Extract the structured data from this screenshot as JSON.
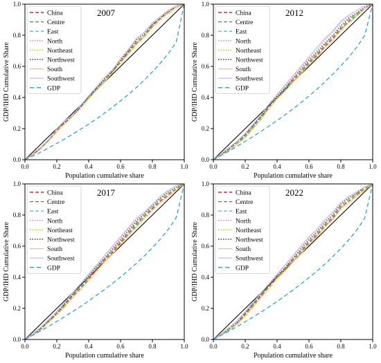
{
  "figure": {
    "xlabel": "Population cumulative share",
    "ylabel": "GDP/IHD Cumulative Share",
    "ticks": [
      "0.0",
      "0.2",
      "0.4",
      "0.6",
      "0.8",
      "1.0"
    ]
  },
  "legend_entries": [
    {
      "name": "China",
      "color": "#d62728",
      "dash": "5,3",
      "width": 1.3
    },
    {
      "name": "Centre",
      "color": "#2ca02c",
      "dash": "5,3",
      "width": 1.0
    },
    {
      "name": "East",
      "color": "#17becf",
      "dash": "5,3",
      "width": 1.0
    },
    {
      "name": "North",
      "color": "#e377c2",
      "dash": "1.5,2",
      "width": 1.2
    },
    {
      "name": "Northeast",
      "color": "#bcbd22",
      "dash": "1.5,2",
      "width": 1.2
    },
    {
      "name": "Northwest",
      "color": "#333333",
      "dash": "1.5,2",
      "width": 1.2
    },
    {
      "name": "South",
      "color": "#ffbb78",
      "dash": "",
      "width": 1.0
    },
    {
      "name": "Southwest",
      "color": "#c5b0d5",
      "dash": "",
      "width": 1.0
    },
    {
      "name": "GDP",
      "color": "#1f9bd8",
      "dash": "6,4",
      "width": 1.2
    }
  ],
  "chart_data": [
    {
      "type": "line",
      "title": "2007",
      "xlim": [
        0,
        1
      ],
      "ylim": [
        0,
        1
      ],
      "x": [
        0,
        0.05,
        0.1,
        0.15,
        0.2,
        0.25,
        0.3,
        0.35,
        0.4,
        0.45,
        0.5,
        0.55,
        0.6,
        0.65,
        0.7,
        0.75,
        0.8,
        0.85,
        0.9,
        0.95,
        1.0
      ],
      "series": [
        {
          "name": "China",
          "values": [
            0,
            0.03,
            0.08,
            0.13,
            0.19,
            0.24,
            0.28,
            0.34,
            0.4,
            0.46,
            0.51,
            0.57,
            0.63,
            0.69,
            0.75,
            0.79,
            0.86,
            0.91,
            0.95,
            0.98,
            1.0
          ]
        },
        {
          "name": "Centre",
          "values": [
            0,
            0.04,
            0.08,
            0.12,
            0.2,
            0.24,
            0.28,
            0.34,
            0.41,
            0.46,
            0.51,
            0.57,
            0.63,
            0.7,
            0.76,
            0.8,
            0.87,
            0.91,
            0.95,
            0.98,
            1.0
          ]
        },
        {
          "name": "East",
          "values": [
            0,
            0.03,
            0.07,
            0.12,
            0.18,
            0.23,
            0.28,
            0.34,
            0.4,
            0.45,
            0.51,
            0.56,
            0.62,
            0.68,
            0.74,
            0.79,
            0.85,
            0.9,
            0.94,
            0.98,
            1.0
          ]
        },
        {
          "name": "North",
          "values": [
            0,
            0.04,
            0.08,
            0.13,
            0.2,
            0.25,
            0.29,
            0.35,
            0.41,
            0.47,
            0.52,
            0.58,
            0.64,
            0.71,
            0.78,
            0.82,
            0.88,
            0.92,
            0.96,
            0.99,
            1.0
          ]
        },
        {
          "name": "Northeast",
          "values": [
            0,
            0.03,
            0.07,
            0.12,
            0.19,
            0.24,
            0.28,
            0.34,
            0.4,
            0.46,
            0.51,
            0.57,
            0.63,
            0.69,
            0.75,
            0.8,
            0.86,
            0.91,
            0.95,
            0.98,
            1.0
          ]
        },
        {
          "name": "Northwest",
          "values": [
            0,
            0.03,
            0.08,
            0.13,
            0.2,
            0.24,
            0.28,
            0.34,
            0.41,
            0.46,
            0.52,
            0.57,
            0.64,
            0.7,
            0.77,
            0.81,
            0.87,
            0.91,
            0.96,
            0.98,
            1.0
          ]
        },
        {
          "name": "South",
          "values": [
            0,
            0.03,
            0.07,
            0.12,
            0.18,
            0.23,
            0.28,
            0.33,
            0.39,
            0.45,
            0.5,
            0.56,
            0.62,
            0.68,
            0.74,
            0.79,
            0.85,
            0.9,
            0.94,
            0.98,
            1.0
          ]
        },
        {
          "name": "Southwest",
          "values": [
            0,
            0.04,
            0.08,
            0.13,
            0.2,
            0.25,
            0.29,
            0.35,
            0.41,
            0.47,
            0.53,
            0.58,
            0.65,
            0.71,
            0.78,
            0.82,
            0.88,
            0.92,
            0.96,
            0.99,
            1.0
          ]
        },
        {
          "name": "GDP",
          "values": [
            0,
            0.025,
            0.05,
            0.077,
            0.105,
            0.134,
            0.165,
            0.196,
            0.229,
            0.263,
            0.3,
            0.338,
            0.378,
            0.42,
            0.465,
            0.513,
            0.565,
            0.621,
            0.683,
            0.757,
            1.0
          ]
        }
      ]
    },
    {
      "type": "line",
      "title": "2012",
      "xlim": [
        0,
        1
      ],
      "ylim": [
        0,
        1
      ],
      "x": [
        0,
        0.05,
        0.1,
        0.15,
        0.2,
        0.25,
        0.3,
        0.35,
        0.4,
        0.45,
        0.5,
        0.55,
        0.6,
        0.65,
        0.7,
        0.75,
        0.8,
        0.85,
        0.9,
        0.95,
        1.0
      ],
      "series": [
        {
          "name": "China",
          "values": [
            0,
            0.03,
            0.07,
            0.11,
            0.15,
            0.21,
            0.27,
            0.34,
            0.4,
            0.45,
            0.51,
            0.56,
            0.62,
            0.67,
            0.73,
            0.78,
            0.84,
            0.89,
            0.93,
            0.97,
            1.0
          ]
        },
        {
          "name": "Centre",
          "values": [
            0,
            0.03,
            0.07,
            0.11,
            0.16,
            0.22,
            0.28,
            0.34,
            0.4,
            0.46,
            0.52,
            0.57,
            0.63,
            0.68,
            0.74,
            0.79,
            0.85,
            0.9,
            0.94,
            0.97,
            1.0
          ]
        },
        {
          "name": "East",
          "values": [
            0,
            0.03,
            0.06,
            0.1,
            0.15,
            0.21,
            0.27,
            0.33,
            0.39,
            0.45,
            0.5,
            0.55,
            0.61,
            0.66,
            0.72,
            0.77,
            0.83,
            0.88,
            0.93,
            0.97,
            1.0
          ]
        },
        {
          "name": "North",
          "values": [
            0,
            0.04,
            0.08,
            0.12,
            0.17,
            0.23,
            0.29,
            0.35,
            0.41,
            0.47,
            0.53,
            0.59,
            0.65,
            0.7,
            0.77,
            0.82,
            0.88,
            0.92,
            0.95,
            0.98,
            1.0
          ]
        },
        {
          "name": "Northeast",
          "values": [
            0,
            0.03,
            0.07,
            0.11,
            0.15,
            0.21,
            0.27,
            0.34,
            0.4,
            0.46,
            0.51,
            0.56,
            0.62,
            0.68,
            0.74,
            0.79,
            0.84,
            0.89,
            0.93,
            0.97,
            1.0
          ]
        },
        {
          "name": "Northwest",
          "values": [
            0,
            0.04,
            0.07,
            0.12,
            0.16,
            0.22,
            0.28,
            0.35,
            0.41,
            0.46,
            0.52,
            0.58,
            0.64,
            0.69,
            0.75,
            0.8,
            0.86,
            0.91,
            0.94,
            0.98,
            1.0
          ]
        },
        {
          "name": "South",
          "values": [
            0,
            0.03,
            0.06,
            0.1,
            0.14,
            0.2,
            0.26,
            0.33,
            0.39,
            0.44,
            0.5,
            0.55,
            0.61,
            0.66,
            0.72,
            0.77,
            0.83,
            0.88,
            0.92,
            0.97,
            1.0
          ]
        },
        {
          "name": "Southwest",
          "values": [
            0,
            0.04,
            0.08,
            0.12,
            0.17,
            0.23,
            0.29,
            0.36,
            0.42,
            0.48,
            0.54,
            0.6,
            0.66,
            0.72,
            0.78,
            0.83,
            0.89,
            0.93,
            0.96,
            0.99,
            1.0
          ]
        },
        {
          "name": "GDP",
          "values": [
            0,
            0.028,
            0.057,
            0.087,
            0.118,
            0.15,
            0.183,
            0.217,
            0.252,
            0.289,
            0.327,
            0.367,
            0.409,
            0.453,
            0.5,
            0.55,
            0.603,
            0.66,
            0.723,
            0.8,
            1.0
          ]
        }
      ]
    },
    {
      "type": "line",
      "title": "2017",
      "xlim": [
        0,
        1
      ],
      "ylim": [
        0,
        1
      ],
      "x": [
        0,
        0.05,
        0.1,
        0.15,
        0.2,
        0.25,
        0.3,
        0.35,
        0.4,
        0.45,
        0.5,
        0.55,
        0.6,
        0.65,
        0.7,
        0.75,
        0.8,
        0.85,
        0.9,
        0.95,
        1.0
      ],
      "series": [
        {
          "name": "China",
          "values": [
            0,
            0.03,
            0.07,
            0.12,
            0.16,
            0.22,
            0.28,
            0.33,
            0.39,
            0.45,
            0.51,
            0.56,
            0.62,
            0.68,
            0.74,
            0.79,
            0.84,
            0.89,
            0.93,
            0.97,
            1.0
          ]
        },
        {
          "name": "Centre",
          "values": [
            0,
            0.03,
            0.07,
            0.12,
            0.17,
            0.23,
            0.29,
            0.34,
            0.4,
            0.46,
            0.52,
            0.57,
            0.63,
            0.69,
            0.75,
            0.8,
            0.85,
            0.9,
            0.94,
            0.97,
            1.0
          ]
        },
        {
          "name": "East",
          "values": [
            0,
            0.03,
            0.06,
            0.11,
            0.16,
            0.21,
            0.27,
            0.33,
            0.38,
            0.44,
            0.5,
            0.55,
            0.61,
            0.67,
            0.73,
            0.78,
            0.83,
            0.88,
            0.92,
            0.96,
            1.0
          ]
        },
        {
          "name": "North",
          "values": [
            0,
            0.04,
            0.08,
            0.13,
            0.18,
            0.24,
            0.3,
            0.35,
            0.41,
            0.47,
            0.53,
            0.59,
            0.65,
            0.71,
            0.77,
            0.81,
            0.86,
            0.91,
            0.95,
            0.98,
            1.0
          ]
        },
        {
          "name": "Northeast",
          "values": [
            0,
            0.03,
            0.07,
            0.12,
            0.16,
            0.22,
            0.28,
            0.34,
            0.4,
            0.46,
            0.51,
            0.57,
            0.63,
            0.68,
            0.74,
            0.79,
            0.85,
            0.9,
            0.94,
            0.97,
            1.0
          ]
        },
        {
          "name": "Northwest",
          "values": [
            0,
            0.03,
            0.07,
            0.12,
            0.17,
            0.23,
            0.29,
            0.35,
            0.41,
            0.47,
            0.52,
            0.58,
            0.64,
            0.7,
            0.76,
            0.81,
            0.86,
            0.91,
            0.95,
            0.98,
            1.0
          ]
        },
        {
          "name": "South",
          "values": [
            0,
            0.03,
            0.06,
            0.11,
            0.16,
            0.21,
            0.27,
            0.32,
            0.38,
            0.44,
            0.5,
            0.55,
            0.61,
            0.67,
            0.72,
            0.78,
            0.83,
            0.88,
            0.92,
            0.96,
            1.0
          ]
        },
        {
          "name": "Southwest",
          "values": [
            0,
            0.04,
            0.08,
            0.13,
            0.18,
            0.24,
            0.3,
            0.36,
            0.42,
            0.48,
            0.54,
            0.6,
            0.66,
            0.72,
            0.78,
            0.82,
            0.87,
            0.92,
            0.96,
            0.99,
            1.0
          ]
        },
        {
          "name": "GDP",
          "values": [
            0,
            0.028,
            0.056,
            0.085,
            0.116,
            0.147,
            0.18,
            0.213,
            0.248,
            0.285,
            0.322,
            0.361,
            0.402,
            0.445,
            0.49,
            0.538,
            0.59,
            0.646,
            0.708,
            0.785,
            1.0
          ]
        }
      ]
    },
    {
      "type": "line",
      "title": "2022",
      "xlim": [
        0,
        1
      ],
      "ylim": [
        0,
        1
      ],
      "x": [
        0,
        0.05,
        0.1,
        0.15,
        0.2,
        0.25,
        0.3,
        0.35,
        0.4,
        0.45,
        0.5,
        0.55,
        0.6,
        0.65,
        0.7,
        0.75,
        0.8,
        0.85,
        0.9,
        0.95,
        1.0
      ],
      "series": [
        {
          "name": "China",
          "values": [
            0,
            0.03,
            0.06,
            0.1,
            0.16,
            0.22,
            0.28,
            0.34,
            0.4,
            0.45,
            0.51,
            0.56,
            0.62,
            0.67,
            0.73,
            0.78,
            0.85,
            0.89,
            0.93,
            0.97,
            1.0
          ]
        },
        {
          "name": "Centre",
          "values": [
            0,
            0.03,
            0.07,
            0.11,
            0.17,
            0.23,
            0.29,
            0.35,
            0.41,
            0.46,
            0.52,
            0.57,
            0.63,
            0.68,
            0.74,
            0.79,
            0.86,
            0.9,
            0.94,
            0.97,
            1.0
          ]
        },
        {
          "name": "East",
          "values": [
            0,
            0.03,
            0.06,
            0.1,
            0.15,
            0.21,
            0.27,
            0.33,
            0.39,
            0.44,
            0.5,
            0.55,
            0.61,
            0.66,
            0.72,
            0.77,
            0.84,
            0.88,
            0.92,
            0.96,
            1.0
          ]
        },
        {
          "name": "North",
          "values": [
            0,
            0.04,
            0.08,
            0.12,
            0.18,
            0.24,
            0.3,
            0.36,
            0.42,
            0.47,
            0.53,
            0.59,
            0.65,
            0.7,
            0.76,
            0.81,
            0.88,
            0.92,
            0.95,
            0.98,
            1.0
          ]
        },
        {
          "name": "Northeast",
          "values": [
            0,
            0.03,
            0.06,
            0.1,
            0.16,
            0.22,
            0.28,
            0.34,
            0.4,
            0.45,
            0.51,
            0.56,
            0.62,
            0.67,
            0.73,
            0.78,
            0.85,
            0.89,
            0.93,
            0.97,
            1.0
          ]
        },
        {
          "name": "Northwest",
          "values": [
            0,
            0.03,
            0.07,
            0.11,
            0.17,
            0.23,
            0.29,
            0.35,
            0.41,
            0.46,
            0.52,
            0.58,
            0.64,
            0.69,
            0.75,
            0.8,
            0.87,
            0.91,
            0.94,
            0.98,
            1.0
          ]
        },
        {
          "name": "South",
          "values": [
            0,
            0.03,
            0.06,
            0.1,
            0.15,
            0.21,
            0.27,
            0.33,
            0.39,
            0.44,
            0.5,
            0.55,
            0.61,
            0.66,
            0.72,
            0.77,
            0.84,
            0.88,
            0.92,
            0.96,
            1.0
          ]
        },
        {
          "name": "Southwest",
          "values": [
            0,
            0.04,
            0.08,
            0.12,
            0.18,
            0.24,
            0.3,
            0.36,
            0.42,
            0.48,
            0.54,
            0.6,
            0.66,
            0.71,
            0.77,
            0.82,
            0.88,
            0.92,
            0.95,
            0.98,
            1.0
          ]
        },
        {
          "name": "GDP",
          "values": [
            0,
            0.027,
            0.055,
            0.084,
            0.114,
            0.145,
            0.177,
            0.21,
            0.245,
            0.281,
            0.318,
            0.357,
            0.398,
            0.44,
            0.485,
            0.533,
            0.585,
            0.641,
            0.703,
            0.78,
            1.0
          ]
        }
      ]
    }
  ]
}
